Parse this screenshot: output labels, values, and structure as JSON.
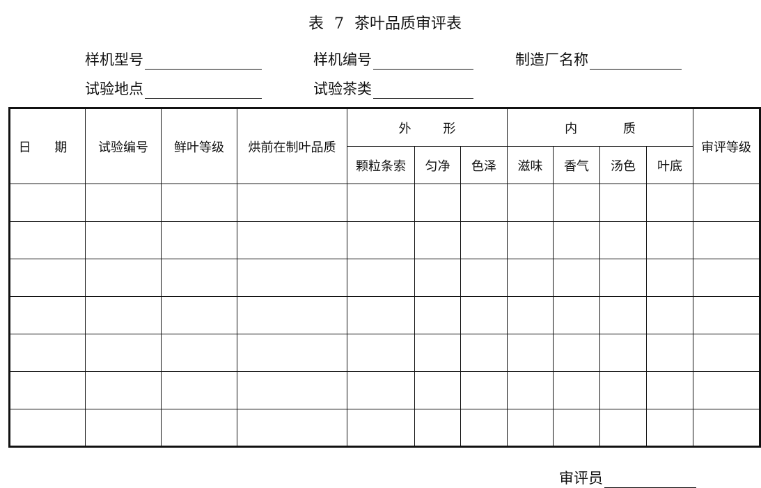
{
  "title": "表 7 茶叶品质审评表",
  "fields": {
    "model": "样机型号",
    "number": "样机编号",
    "maker": "制造厂名称",
    "site": "试验地点",
    "tea": "试验茶类",
    "reviewer": "审评员"
  },
  "table": {
    "headers": {
      "date": "日 期",
      "test_no": "试验编号",
      "leaf_grade": "鲜叶等级",
      "pre_dry": "烘前在制叶品质",
      "shape": "外 形",
      "inner": "内 质",
      "grade": "审评等级"
    },
    "sub_headers": [
      "颗粒条索",
      "匀净",
      "色泽",
      "滋味",
      "香气",
      "汤色",
      "叶底"
    ],
    "rows": 7
  }
}
